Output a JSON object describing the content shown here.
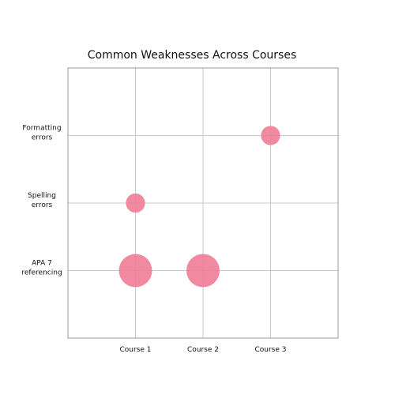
{
  "chart_data": {
    "type": "scatter",
    "title": "Common Weaknesses Across Courses",
    "xlabel": "",
    "ylabel": "",
    "categories": [
      "Course 1",
      "Course 2",
      "Course 3"
    ],
    "y_categories": [
      [
        "APA 7",
        "referencing"
      ],
      [
        "Spelling",
        "errors"
      ],
      [
        "Formatting",
        "errors"
      ]
    ],
    "points": [
      {
        "x": "Course 1",
        "y": "APA 7 referencing",
        "size": 3
      },
      {
        "x": "Course 2",
        "y": "APA 7 referencing",
        "size": 3
      },
      {
        "x": "Course 1",
        "y": "Spelling errors",
        "size": 1
      },
      {
        "x": "Course 3",
        "y": "Formatting errors",
        "size": 1
      }
    ],
    "grid": true,
    "legend": "none",
    "bubble_color": "#ef7c96"
  }
}
